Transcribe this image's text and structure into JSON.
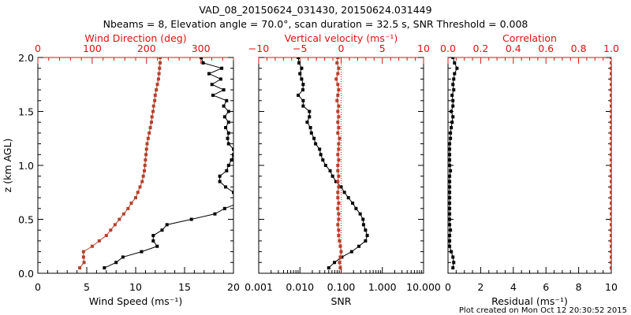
{
  "title": "VAD_08_20150624_031430, 20150624.031449",
  "subtitle": "Nbeams = 8, Elevation angle = 70.0°, scan duration = 32.5 s, SNR Threshold = 0.008",
  "footer": "Plot created on Mon Oct 12 20:30:52 2015",
  "colors": {
    "black_series": "#000000",
    "red_series": "#b5402a",
    "red_axis": "#e01010"
  },
  "chart_data": [
    {
      "type": "line",
      "ylabel": "z (km AGL)",
      "ylim": [
        0,
        2
      ],
      "yticks": [
        "0.0",
        "0.5",
        "1.0",
        "1.5",
        "2.0"
      ],
      "bottom_axis": {
        "label": "Wind Speed (ms⁻¹)",
        "range": [
          0,
          20
        ],
        "ticks": [
          "0",
          "5",
          "10",
          "15",
          "20"
        ]
      },
      "top_axis": {
        "label": "Wind Direction (deg)",
        "range": [
          0,
          360
        ],
        "ticks": [
          "0",
          "100",
          "200",
          "300"
        ]
      },
      "z": [
        0.05,
        0.1,
        0.15,
        0.2,
        0.25,
        0.3,
        0.35,
        0.4,
        0.45,
        0.5,
        0.55,
        0.6,
        0.65,
        0.7,
        0.75,
        0.8,
        0.85,
        0.9,
        0.95,
        1.0,
        1.05,
        1.1,
        1.15,
        1.2,
        1.25,
        1.3,
        1.35,
        1.4,
        1.45,
        1.5,
        1.55,
        1.6,
        1.65,
        1.7,
        1.75,
        1.8,
        1.85,
        1.9,
        1.95,
        2.0
      ],
      "series": [
        {
          "name": "Wind Speed",
          "axis": "bottom",
          "color": "black",
          "values": [
            6.8,
            8.0,
            8.7,
            10.6,
            12.2,
            11.8,
            11.8,
            12.7,
            13.2,
            15.7,
            18.1,
            19.1,
            20.5,
            21.0,
            20.0,
            19.2,
            18.6,
            18.6,
            19.3,
            19.5,
            19.8,
            20.0,
            20.0,
            19.5,
            19.4,
            19.5,
            19.2,
            19.5,
            19.1,
            19.5,
            19.0,
            19.3,
            17.9,
            19.0,
            17.8,
            18.7,
            17.5,
            18.8,
            16.9,
            16.7
          ]
        },
        {
          "name": "Wind Direction",
          "axis": "top",
          "color": "red",
          "values": [
            77,
            85,
            84,
            84,
            100,
            113,
            126,
            134,
            142,
            150,
            158,
            166,
            172,
            180,
            184,
            188,
            192,
            194,
            196,
            197,
            198,
            199,
            200,
            201,
            203,
            205,
            207,
            209,
            210,
            212,
            213,
            215,
            216,
            218,
            220,
            222,
            223,
            224,
            225,
            225
          ]
        }
      ]
    },
    {
      "type": "line",
      "ylim": [
        0,
        2
      ],
      "bottom_axis": {
        "label": "SNR",
        "range": [
          0.001,
          10
        ],
        "scale": "log",
        "ticks": [
          "0.001",
          "0.010",
          "0.100",
          "1.000",
          "10.000"
        ]
      },
      "top_axis": {
        "label": "Vertical velocity (ms⁻¹)",
        "range": [
          -10,
          10
        ],
        "ticks": [
          "−10",
          "−5",
          "0",
          "5",
          "10"
        ]
      },
      "series": [
        {
          "name": "SNR",
          "axis": "bottom",
          "color": "black",
          "values": [
            0.05,
            0.069,
            0.104,
            0.18,
            0.27,
            0.39,
            0.43,
            0.39,
            0.35,
            0.34,
            0.29,
            0.23,
            0.19,
            0.15,
            0.12,
            0.1,
            0.075,
            0.062,
            0.054,
            0.042,
            0.036,
            0.032,
            0.03,
            0.024,
            0.022,
            0.019,
            0.018,
            0.015,
            0.017,
            0.017,
            0.012,
            0.012,
            0.0091,
            0.0118,
            0.012,
            0.011,
            0.01,
            0.011,
            0.0095,
            0.0091
          ]
        },
        {
          "name": "Vertical velocity",
          "axis": "top",
          "color": "red",
          "values": [
            -0.1,
            -0.2,
            -0.1,
            0,
            -0.1,
            -0.2,
            -0.3,
            -0.3,
            -0.4,
            -0.3,
            -0.3,
            -0.4,
            -0.3,
            -0.4,
            -0.4,
            -0.3,
            -0.4,
            -0.3,
            -0.4,
            -0.4,
            -0.3,
            -0.4,
            -0.3,
            -0.3,
            -0.2,
            -0.4,
            -0.3,
            -0.4,
            -0.3,
            -0.4,
            -0.3,
            -0.5,
            -0.4,
            -0.3,
            -0.4,
            -0.6,
            -0.4,
            -0.3,
            -0.5,
            -0.4
          ]
        }
      ]
    },
    {
      "type": "line",
      "ylim": [
        0,
        2
      ],
      "bottom_axis": {
        "label": "Residual (ms⁻¹)",
        "range": [
          0,
          10
        ],
        "ticks": [
          "0",
          "2",
          "4",
          "6",
          "8",
          "10"
        ]
      },
      "top_axis": {
        "label": "Correlation",
        "range": [
          0,
          1
        ],
        "ticks": [
          "0.0",
          "0.2",
          "0.4",
          "0.6",
          "0.8",
          "1.0"
        ]
      },
      "series": [
        {
          "name": "Residual",
          "axis": "bottom",
          "color": "black",
          "values": [
            0.3,
            0.35,
            0.3,
            0.2,
            0.1,
            0.1,
            0.1,
            0.15,
            0.1,
            0.1,
            0.1,
            0.1,
            0.1,
            0.1,
            0.1,
            0.1,
            0.1,
            0.1,
            0.15,
            0.1,
            0.1,
            0.1,
            0.1,
            0.1,
            0.15,
            0.15,
            0.2,
            0.25,
            0.3,
            0.2,
            0.3,
            0.3,
            0.25,
            0.35,
            0.3,
            0.35,
            0.4,
            0.55,
            0.4,
            0.3
          ]
        },
        {
          "name": "Correlation",
          "axis": "top",
          "color": "red",
          "values": [
            1,
            1,
            1,
            1,
            1,
            1,
            1,
            1,
            1,
            1,
            1,
            1,
            1,
            1,
            1,
            1,
            1,
            1,
            1,
            1,
            1,
            1,
            1,
            1,
            1,
            1,
            1,
            1,
            1,
            1,
            1,
            1,
            1,
            1,
            1,
            1,
            1,
            1,
            1,
            1
          ]
        }
      ]
    }
  ]
}
